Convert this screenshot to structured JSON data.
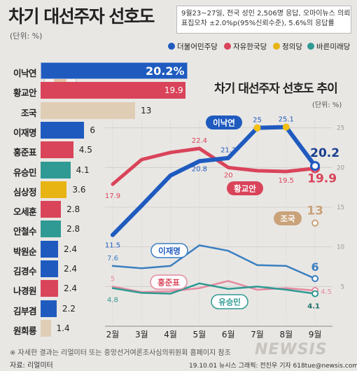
{
  "header": {
    "title": "차기 대선주자 선호도",
    "unit": "(단위: %)",
    "note_line1": "9월23~27일, 전국 성인 2,506명 응답, 오마이뉴스 의뢰",
    "note_line2": "표집오차 ±2.0%p(95%신뢰수준), 5.6%의 응답률"
  },
  "legend": [
    {
      "label": "더불어민주당",
      "color": "#1f5bbf"
    },
    {
      "label": "자유한국당",
      "color": "#d9445a"
    },
    {
      "label": "정의당",
      "color": "#e8b413"
    },
    {
      "label": "바른미래당",
      "color": "#2f9a93"
    }
  ],
  "bars": [
    {
      "name": "이낙연",
      "value": 20.2,
      "label": "20.2%",
      "color": "#1f5bbf"
    },
    {
      "name": "황교안",
      "value": 19.9,
      "label": "19.9",
      "color": "#d9445a"
    },
    {
      "name": "조국",
      "value": 13,
      "label": "13",
      "color": "#e0cdb5"
    },
    {
      "name": "이재명",
      "value": 6,
      "label": "6",
      "color": "#1f5bbf"
    },
    {
      "name": "홍준표",
      "value": 4.5,
      "label": "4.5",
      "color": "#d9445a"
    },
    {
      "name": "유승민",
      "value": 4.1,
      "label": "4.1",
      "color": "#2f9a93"
    },
    {
      "name": "심상정",
      "value": 3.6,
      "label": "3.6",
      "color": "#e8b413"
    },
    {
      "name": "오세훈",
      "value": 2.8,
      "label": "2.8",
      "color": "#d9445a"
    },
    {
      "name": "안철수",
      "value": 2.8,
      "label": "2.8",
      "color": "#2f9a93"
    },
    {
      "name": "박원순",
      "value": 2.4,
      "label": "2.4",
      "color": "#1f5bbf"
    },
    {
      "name": "김경수",
      "value": 2.4,
      "label": "2.4",
      "color": "#1f5bbf"
    },
    {
      "name": "나경원",
      "value": 2.4,
      "label": "2.4",
      "color": "#d9445a"
    },
    {
      "name": "김부겸",
      "value": 2.2,
      "label": "2.2",
      "color": "#1f5bbf"
    },
    {
      "name": "원희룡",
      "value": 1.4,
      "label": "1.4",
      "color": "#e0cdb5"
    }
  ],
  "trend": {
    "title": "차기 대선주자 선호도 추이",
    "unit": "(단위: %)",
    "months": [
      "2월",
      "3월",
      "4월",
      "5월",
      "6월",
      "7월",
      "8월",
      "9월"
    ],
    "yticks": [
      5,
      10,
      15,
      20,
      25
    ],
    "ylim": [
      0,
      27
    ]
  },
  "chart_data": {
    "type": "line",
    "title": "차기 대선주자 선호도 추이",
    "x": [
      "2월",
      "3월",
      "4월",
      "5월",
      "6월",
      "7월",
      "8월",
      "9월"
    ],
    "ylim": [
      0,
      27
    ],
    "series": [
      {
        "name": "이낙연",
        "color": "#1f5bbf",
        "width": 6,
        "values": [
          11.5,
          15.2,
          19.0,
          20.8,
          21.2,
          25,
          25.1,
          20.2
        ],
        "labels": [
          "11.5",
          "",
          "",
          "20.8",
          "21.2",
          "25",
          "25.1",
          "20.2"
        ]
      },
      {
        "name": "황교안",
        "color": "#d9445a",
        "width": 5,
        "values": [
          17.9,
          21.0,
          21.9,
          22.4,
          20,
          19.6,
          19.5,
          19.9
        ],
        "labels": [
          "17.9",
          "",
          "",
          "22.4",
          "20",
          "",
          "19.5",
          "19.9"
        ]
      },
      {
        "name": "조국",
        "color": "#c9a27a",
        "width": 0,
        "values": [
          null,
          null,
          null,
          null,
          null,
          null,
          null,
          13
        ],
        "labels": [
          "",
          "",
          "",
          "",
          "",
          "",
          "",
          "13"
        ]
      },
      {
        "name": "이재명",
        "color": "#3a7fc1",
        "width": 2.5,
        "values": [
          7.6,
          7.3,
          7.6,
          10.2,
          9.5,
          7.7,
          7.6,
          6
        ],
        "labels": [
          "7.6",
          "",
          "",
          "",
          "",
          "",
          "",
          "6"
        ]
      },
      {
        "name": "홍준표",
        "color": "#e58aa0",
        "width": 2.5,
        "values": [
          5,
          4.3,
          4.4,
          4.8,
          5.7,
          4.6,
          4.8,
          4.5
        ],
        "labels": [
          "5",
          "",
          "",
          "",
          "",
          "",
          "",
          "4.5"
        ]
      },
      {
        "name": "유승민",
        "color": "#2f9a93",
        "width": 2.5,
        "values": [
          4.8,
          4.2,
          4.1,
          5.4,
          4.7,
          5.0,
          4.6,
          4.1
        ],
        "labels": [
          "4.8",
          "",
          "",
          "",
          "",
          "",
          "",
          "4.1"
        ]
      }
    ]
  },
  "footer": {
    "note": "※ 자세한 결과는 리얼미터 또는 중앙선거여론조사심의위원회 홈페이지 참조",
    "source": "자료: 리얼미터",
    "credit": "19.10.01 뉴시스 그래픽: 전진우 기자 618tue@newsis.com",
    "watermark": "NEWSIS"
  }
}
